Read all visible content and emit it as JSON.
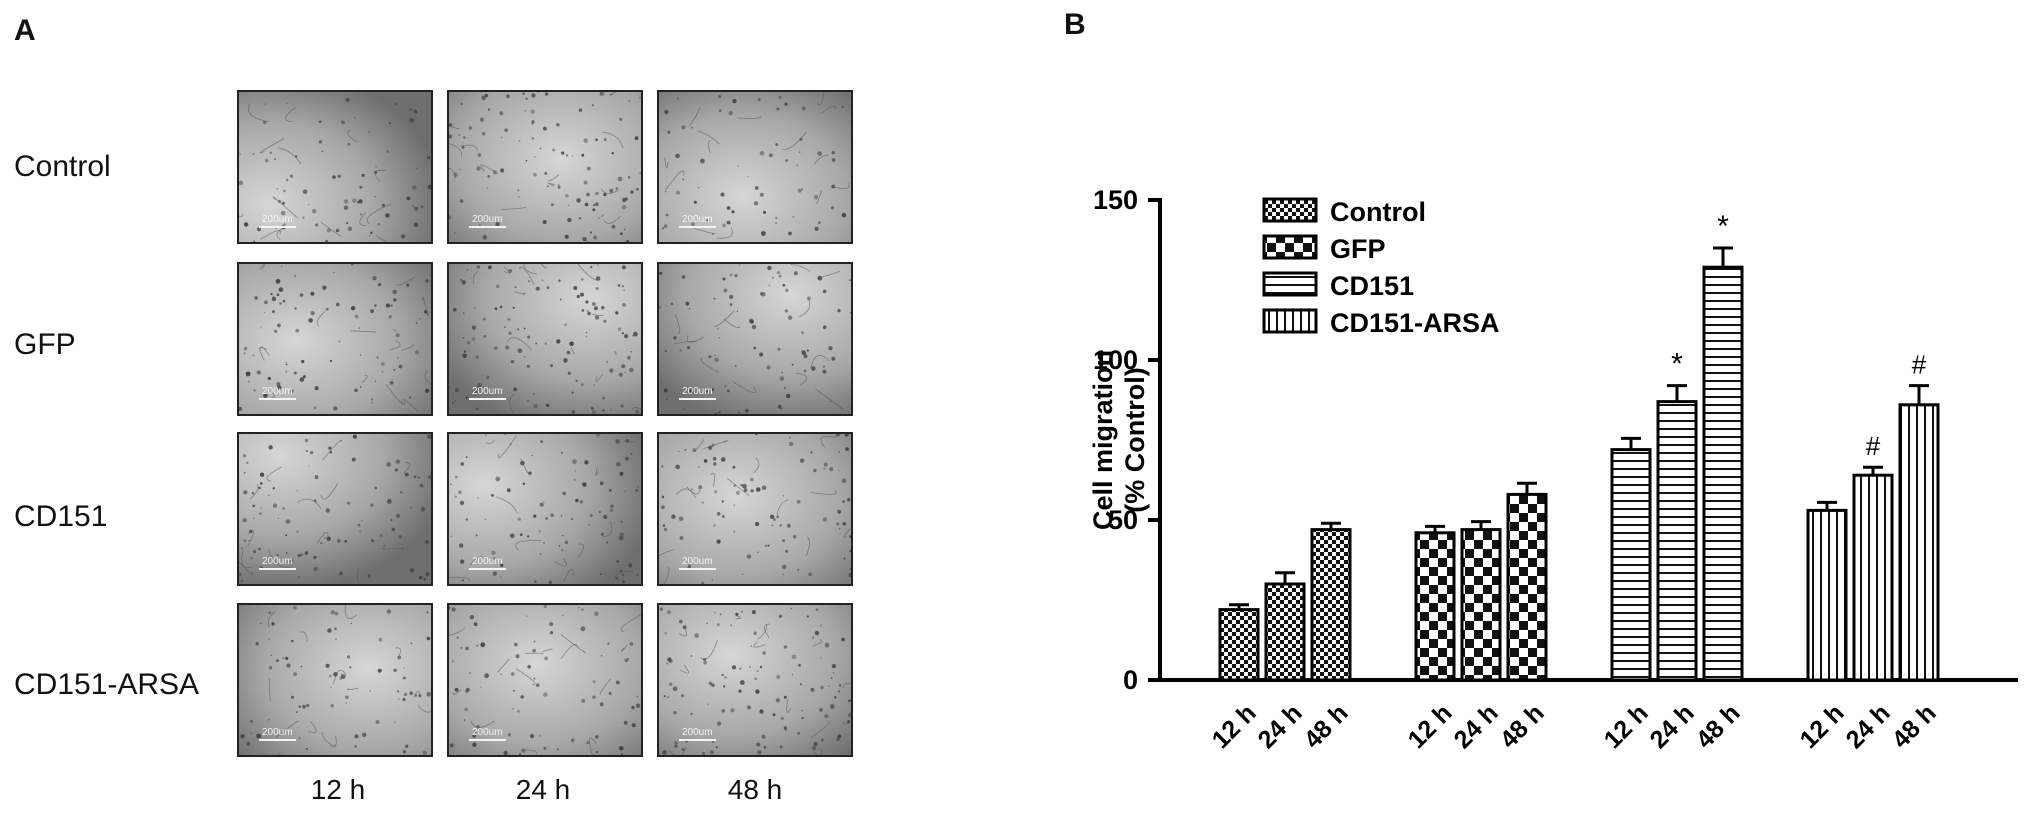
{
  "panel_a": {
    "label": "A",
    "rows": [
      "Control",
      "GFP",
      "CD151",
      "CD151-ARSA"
    ],
    "columns": [
      "12 h",
      "24 h",
      "48 h"
    ],
    "scale_bar": "200um"
  },
  "panel_b": {
    "label": "B"
  },
  "chart_data": {
    "type": "bar",
    "ylabel_line1": "Cell migration",
    "ylabel_line2": "(% Control)",
    "ylim": [
      0,
      150
    ],
    "yticks": [
      0,
      50,
      100,
      150
    ],
    "categories": [
      "12 h",
      "24 h",
      "48 h"
    ],
    "series": [
      {
        "name": "Control",
        "values": [
          22,
          30,
          47
        ],
        "errors": [
          1.5,
          3.5,
          2
        ],
        "marks": [
          "",
          "",
          ""
        ]
      },
      {
        "name": "GFP",
        "values": [
          46,
          47,
          58
        ],
        "errors": [
          2,
          2.5,
          3.5
        ],
        "marks": [
          "",
          "",
          ""
        ]
      },
      {
        "name": "CD151",
        "values": [
          72,
          87,
          129
        ],
        "errors": [
          3.5,
          5,
          6
        ],
        "marks": [
          "",
          "*",
          "*"
        ]
      },
      {
        "name": "CD151-ARSA",
        "values": [
          53,
          64,
          86
        ],
        "errors": [
          2.5,
          2.5,
          6
        ],
        "marks": [
          "",
          "#",
          "#"
        ]
      }
    ],
    "legend_position": "top-left",
    "grid": false,
    "colors": {
      "bar_fill": "#ffffff",
      "stroke": "#000000"
    }
  }
}
